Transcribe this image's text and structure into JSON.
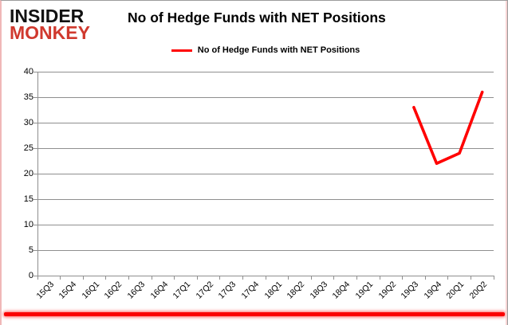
{
  "branding": {
    "logo_line1": "INSIDER",
    "logo_line2": "MONKEY",
    "logo_color_top": "#111111",
    "logo_color_bottom": "#d0392e"
  },
  "header": {
    "title": "No of Hedge Funds with NET Positions"
  },
  "legend": {
    "label": "No of Hedge Funds with NET Positions",
    "line_color": "#ff0000"
  },
  "chart_data": {
    "type": "line",
    "title": "No of Hedge Funds with NET Positions",
    "categories": [
      "15Q3",
      "15Q4",
      "16Q1",
      "16Q2",
      "16Q3",
      "16Q4",
      "17Q1",
      "17Q2",
      "17Q3",
      "17Q4",
      "18Q1",
      "18Q2",
      "18Q3",
      "18Q4",
      "19Q1",
      "19Q2",
      "19Q3",
      "19Q4",
      "20Q1",
      "20Q2"
    ],
    "series": [
      {
        "name": "No of Hedge Funds with NET Positions",
        "color": "#ff0000",
        "values": [
          null,
          null,
          null,
          null,
          null,
          null,
          null,
          null,
          null,
          null,
          null,
          null,
          null,
          null,
          null,
          null,
          33,
          22,
          24,
          36
        ]
      }
    ],
    "xlabel": "",
    "ylabel": "",
    "ylim": [
      0,
      40
    ],
    "ytick_step": 5,
    "grid": "horizontal",
    "gridline_color": "#8f8f8f",
    "legend_position": "top-center",
    "accent_color": "#ff0000"
  }
}
